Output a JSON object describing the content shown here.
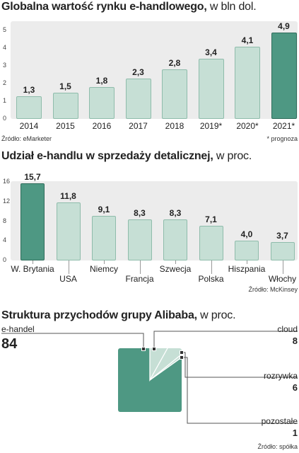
{
  "colors": {
    "bar_light": "#c6dfd5",
    "bar_light_border": "#8fbcab",
    "bar_dark": "#4e9883",
    "bar_dark_border": "#2f6d5b",
    "panel": "#ececec",
    "pie_dark": "#4e9883",
    "pie_light": "#c6dfd5"
  },
  "chart1": {
    "title_bold": "Globalna wartość rynku e-handlowego,",
    "title_unit": "w bln dol.",
    "source": "Źródło: eMarketer",
    "note": "* prognoza"
  },
  "chart2": {
    "title_bold": "Udział e-handlu w sprzedaży detalicznej,",
    "title_unit": "w proc.",
    "source": "Źródło: McKinsey"
  },
  "chart3": {
    "title_bold": "Struktura przychodów grupy Alibaba,",
    "title_unit": "w proc.",
    "source": "Źródło: spółka"
  },
  "chart_data": [
    {
      "type": "bar",
      "title": "Globalna wartość rynku e-handlowego, w bln dol.",
      "categories": [
        "2014",
        "2015",
        "2016",
        "2017",
        "2018",
        "2019*",
        "2020*",
        "2021*"
      ],
      "values": [
        1.3,
        1.5,
        1.8,
        2.3,
        2.8,
        3.4,
        4.1,
        4.9
      ],
      "value_labels": [
        "1,3",
        "1,5",
        "1,8",
        "2,3",
        "2,8",
        "3,4",
        "4,1",
        "4,9"
      ],
      "highlight": [
        false,
        false,
        false,
        false,
        false,
        false,
        false,
        true
      ],
      "yticks": [
        "0",
        "1",
        "2",
        "3",
        "4",
        "5"
      ],
      "ylim": [
        0,
        5
      ],
      "grid": false
    },
    {
      "type": "bar",
      "title": "Udział e-handlu w sprzedaży detalicznej, w proc.",
      "categories": [
        "W. Brytania",
        "USA",
        "Niemcy",
        "Francja",
        "Szwecja",
        "Polska",
        "Hiszpania",
        "Włochy"
      ],
      "values": [
        15.7,
        11.8,
        9.1,
        8.3,
        8.3,
        7.1,
        4.0,
        3.7
      ],
      "value_labels": [
        "15,7",
        "11,8",
        "9,1",
        "8,3",
        "8,3",
        "7,1",
        "4,0",
        "3,7"
      ],
      "highlight": [
        true,
        false,
        false,
        false,
        false,
        false,
        false,
        false
      ],
      "yticks": [
        "0",
        "4",
        "8",
        "12",
        "16"
      ],
      "ylim": [
        0,
        16
      ],
      "grid": false
    },
    {
      "type": "pie",
      "title": "Struktura przychodów grupy Alibaba, w proc.",
      "slices": [
        {
          "label": "e-handel",
          "value": 84,
          "value_label": "84"
        },
        {
          "label": "cloud",
          "value": 8,
          "value_label": "8"
        },
        {
          "label": "rozrywka",
          "value": 6,
          "value_label": "6"
        },
        {
          "label": "pozostałe",
          "value": 1,
          "value_label": "1"
        }
      ]
    }
  ]
}
